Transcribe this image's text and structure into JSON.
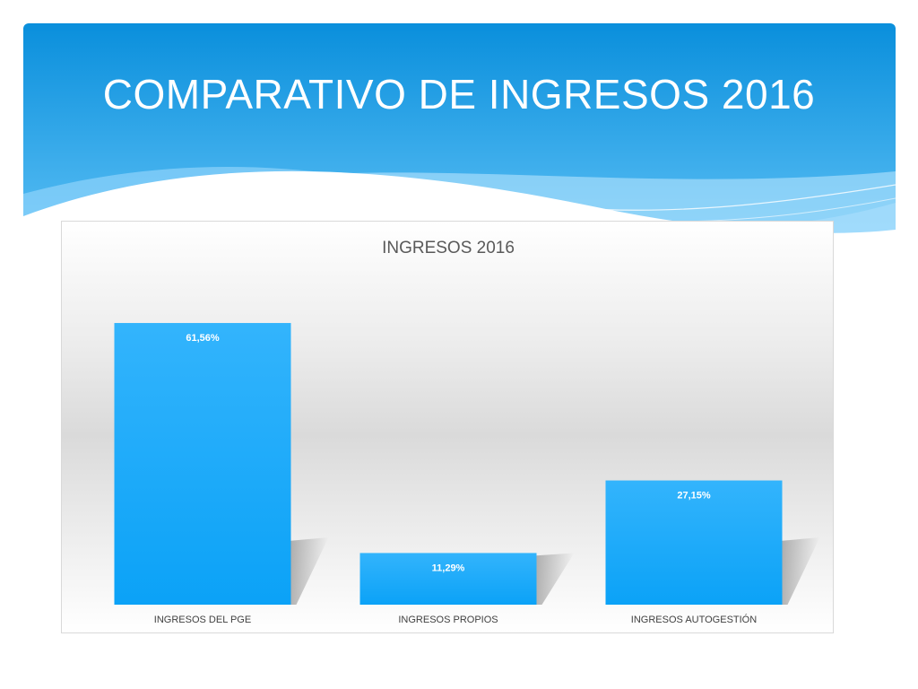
{
  "slide": {
    "title": "COMPARATIVO DE INGRESOS 2016"
  },
  "colors": {
    "header_top": "#0a8fdc",
    "header_bottom": "#5cc0f5",
    "bar_top": "#33b4fc",
    "bar_bottom": "#0ba2f7"
  },
  "chart_data": {
    "type": "bar",
    "title": "INGRESOS 2016",
    "categories": [
      "INGRESOS DEL PGE",
      "INGRESOS PROPIOS",
      "INGRESOS AUTOGESTIÓN"
    ],
    "values": [
      61.56,
      11.29,
      27.15
    ],
    "data_labels": [
      "61,56%",
      "11,29%",
      "27,15%"
    ],
    "ylim": [
      0,
      70
    ],
    "grid": false,
    "legend": "none"
  }
}
